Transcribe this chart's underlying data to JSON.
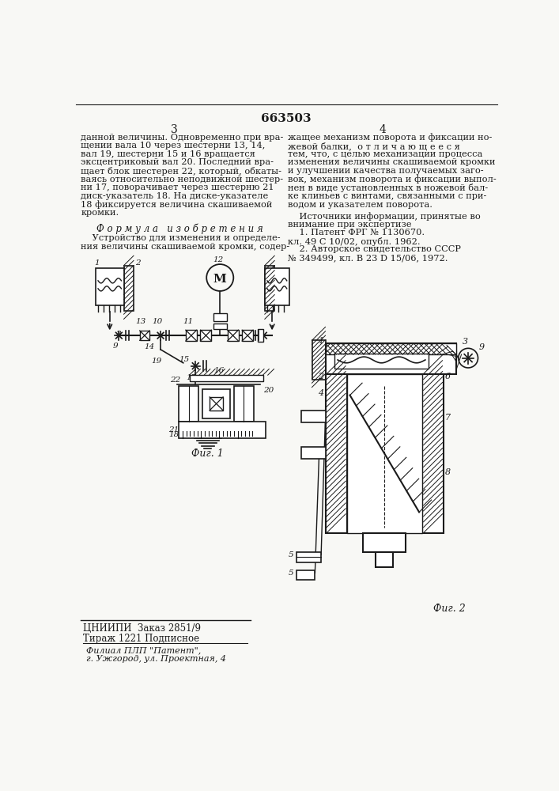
{
  "patent_number": "663503",
  "page_left": "3",
  "page_right": "4",
  "background_color": "#f8f8f5",
  "text_color": "#1a1a1a",
  "col_left_text": [
    "данной величины. Одновременно при вра-",
    "щении вала 10 через шестерни 13, 14,",
    "вал 19, шестерни 15 и 16 вращается",
    "эксцентриковый вал 20. Последний вра-",
    "щает блок шестерен 22, который, обкаты-",
    "ваясь относительно неподвижной шестер-",
    "ни 17, поворачивает через шестерню 21",
    "диск-указатель 18. На диске-указателе",
    "18 фиксируется величина скашиваемой",
    "кромки."
  ],
  "formula_header": "Ф о р м у л а   и з о б р е т е н и я",
  "formula_text": [
    "    Устройство для изменения и определе-",
    "ния величины скашиваемой кромки, содер-"
  ],
  "col_right_text": [
    "жащее механизм поворота и фиксации но-",
    "жевой балки,  о т л и ч а ю щ е е с я",
    "тем, что, с целью механизации процесса",
    "изменения величины скашиваемой кромки",
    "и улучшении качества получаемых заго-",
    "вок, механизм поворота и фиксации выпол-",
    "нен в виде установленных в ножевой бал-",
    "ке клиньев с винтами, связанными с при-",
    "водом и указателем поворота."
  ],
  "sources_header": "    Источники информации, принятые во",
  "sources_text": [
    "внимание при экспертизе",
    "    1. Патент ФРГ № 1130670.",
    "кл. 49 С 10/02, опубл. 1962.",
    "    2. Авторское свидетельство СССР",
    "№ 349499, кл. В 23 D 15/06, 1972."
  ],
  "fig1_label": "Фиг. 1",
  "fig2_label": "Фиг. 2",
  "bottom_left_lines": [
    "ЦНИИПИ  Заказ 2851/9",
    "Тираж 1221 Подписное"
  ],
  "bottom_right_lines": [
    "Филиал ПЛП \"Патент\",",
    "г. Ужгород, ул. Проектная, 4"
  ]
}
